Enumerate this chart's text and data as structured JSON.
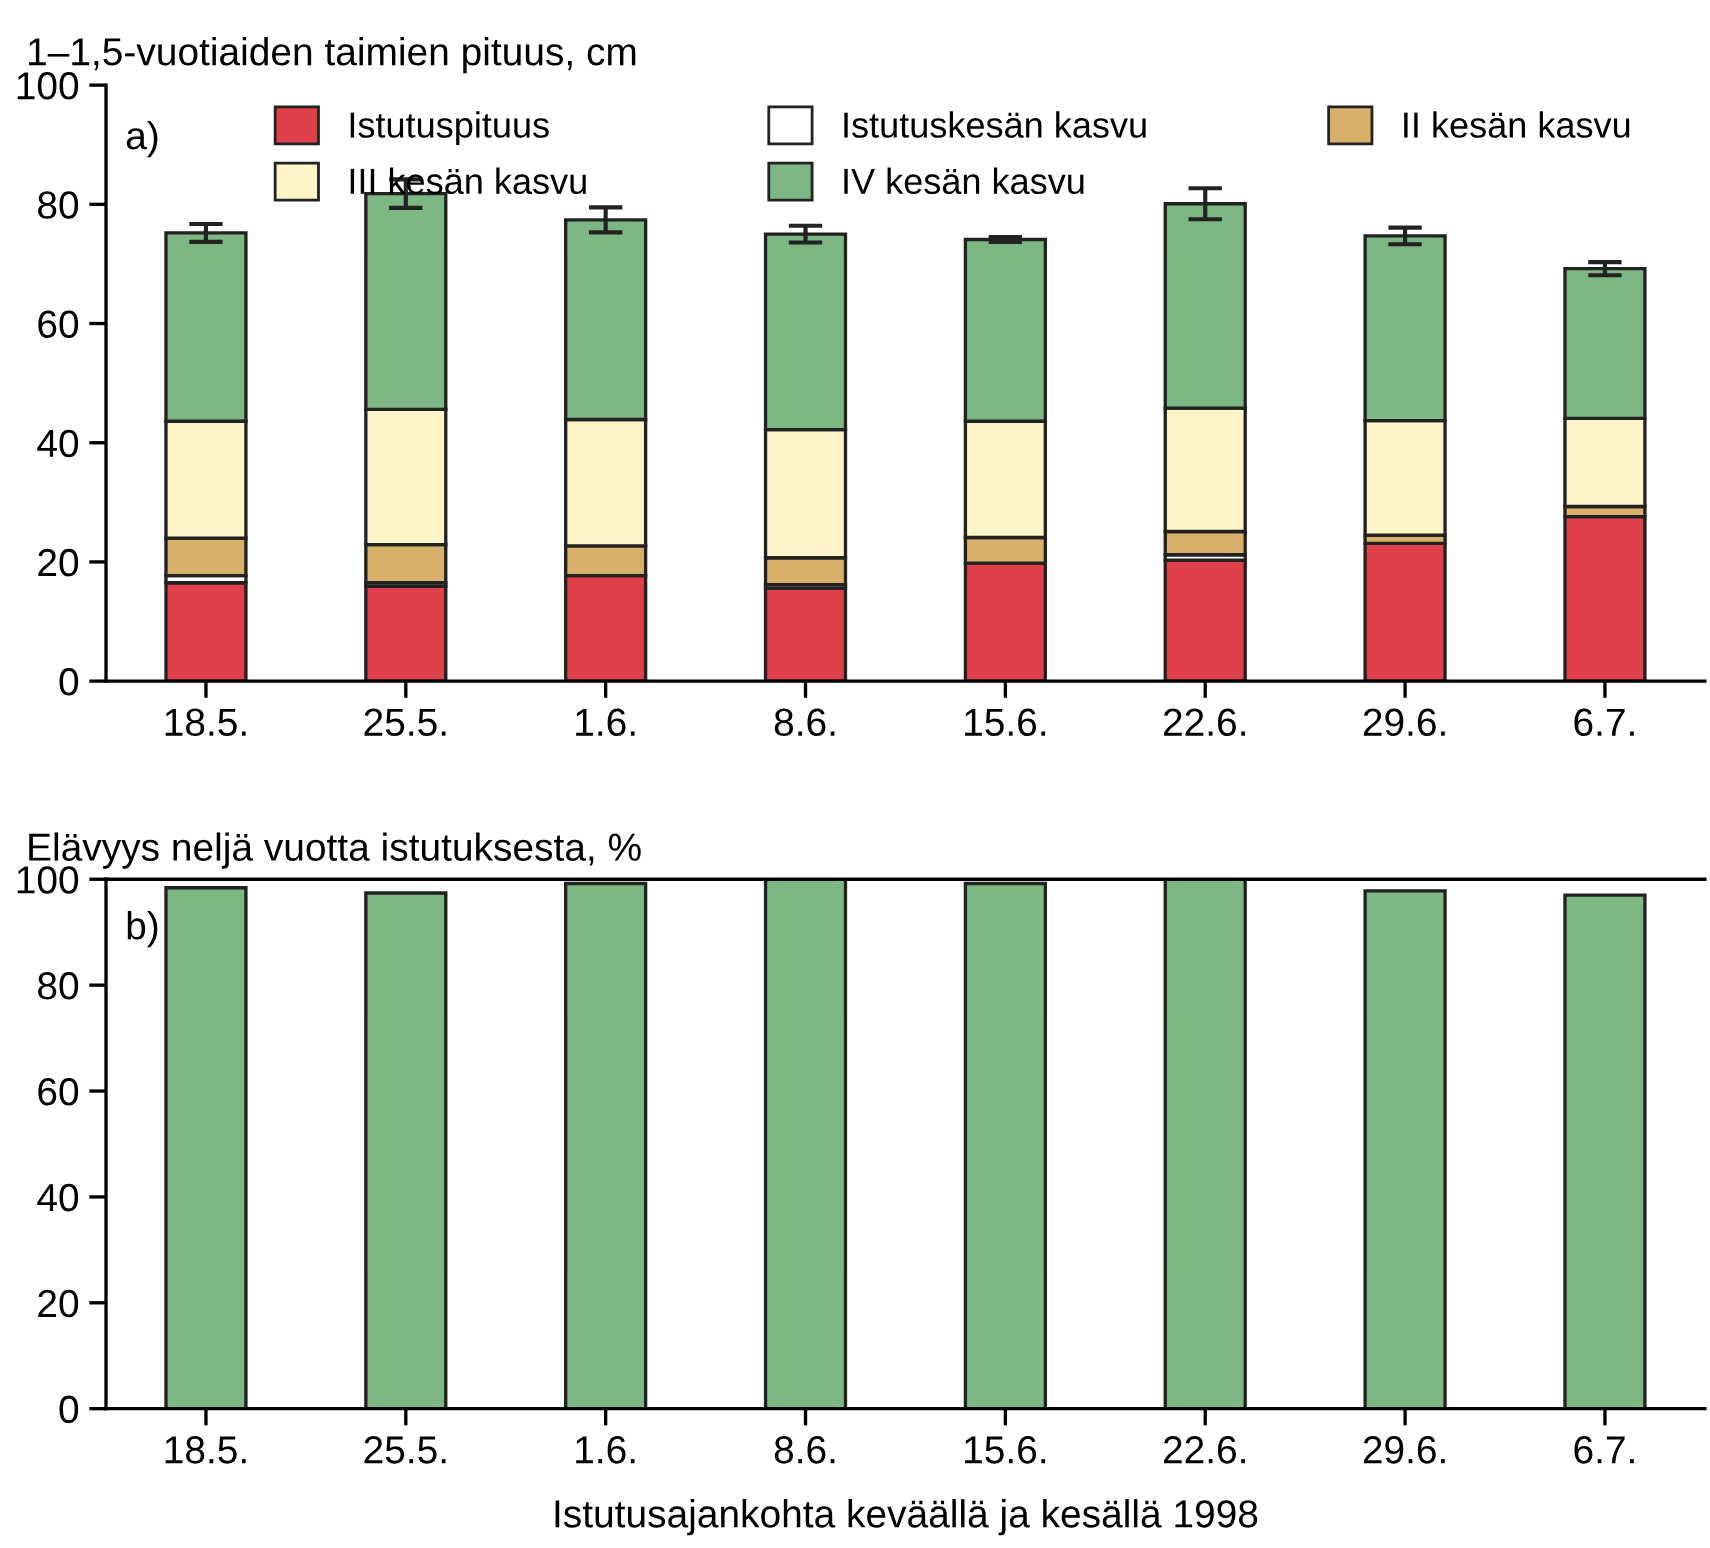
{
  "chart_data": [
    {
      "type": "bar",
      "stacked": true,
      "title": "1–1,5-vuotiaiden taimien pituus, cm",
      "annotations": [
        "a)"
      ],
      "categories": [
        "18.5.",
        "25.5.",
        "1.6.",
        "8.6.",
        "15.6.",
        "22.6.",
        "29.6.",
        "6.7."
      ],
      "series": [
        {
          "name": "Istutuspituus",
          "color": "#e0404a",
          "values": [
            16.5,
            15.9,
            17.7,
            15.6,
            19.8,
            20.3,
            23.1,
            27.6
          ]
        },
        {
          "name": "Istutuskesän kasvu",
          "color": "#ffffff",
          "values": [
            1.2,
            0.6,
            null,
            0.6,
            null,
            0.9,
            null,
            null
          ]
        },
        {
          "name": "II kesän kasvu",
          "color": "#d9b06a",
          "values": [
            6.3,
            6.4,
            5.0,
            4.5,
            4.3,
            3.9,
            1.4,
            1.7
          ]
        },
        {
          "name": "III kesän kasvu",
          "color": "#fdf5c8",
          "values": [
            19.6,
            22.7,
            21.2,
            21.5,
            19.5,
            20.7,
            19.2,
            14.8
          ]
        },
        {
          "name": "IV kesän kasvu",
          "color": "#7db783",
          "values": [
            31.6,
            36.2,
            33.5,
            32.8,
            30.5,
            34.3,
            31.0,
            25.1
          ],
          "errors": [
            1.5,
            2.4,
            2.1,
            1.4,
            0.4,
            2.6,
            1.4,
            1.1
          ]
        }
      ],
      "ylim": [
        0,
        100
      ],
      "yticks": [
        0,
        20,
        40,
        60,
        80,
        100
      ],
      "legend": "top",
      "grid": false
    },
    {
      "type": "bar",
      "title": "Elävyys neljä vuotta istutuksesta, %",
      "xlabel": "Istutusajankohta keväällä ja kesällä 1998",
      "annotations": [
        "b)"
      ],
      "categories": [
        "18.5.",
        "25.5.",
        "1.6.",
        "8.6.",
        "15.6.",
        "22.6.",
        "29.6.",
        "6.7."
      ],
      "series": [
        {
          "color": "#7db783",
          "values": [
            98.4,
            97.4,
            99.2,
            100,
            99.2,
            100,
            97.8,
            97.0
          ]
        }
      ],
      "ylim": [
        0,
        100
      ],
      "yticks": [
        0,
        20,
        40,
        60,
        80,
        100
      ],
      "legend": false,
      "grid": false
    }
  ]
}
